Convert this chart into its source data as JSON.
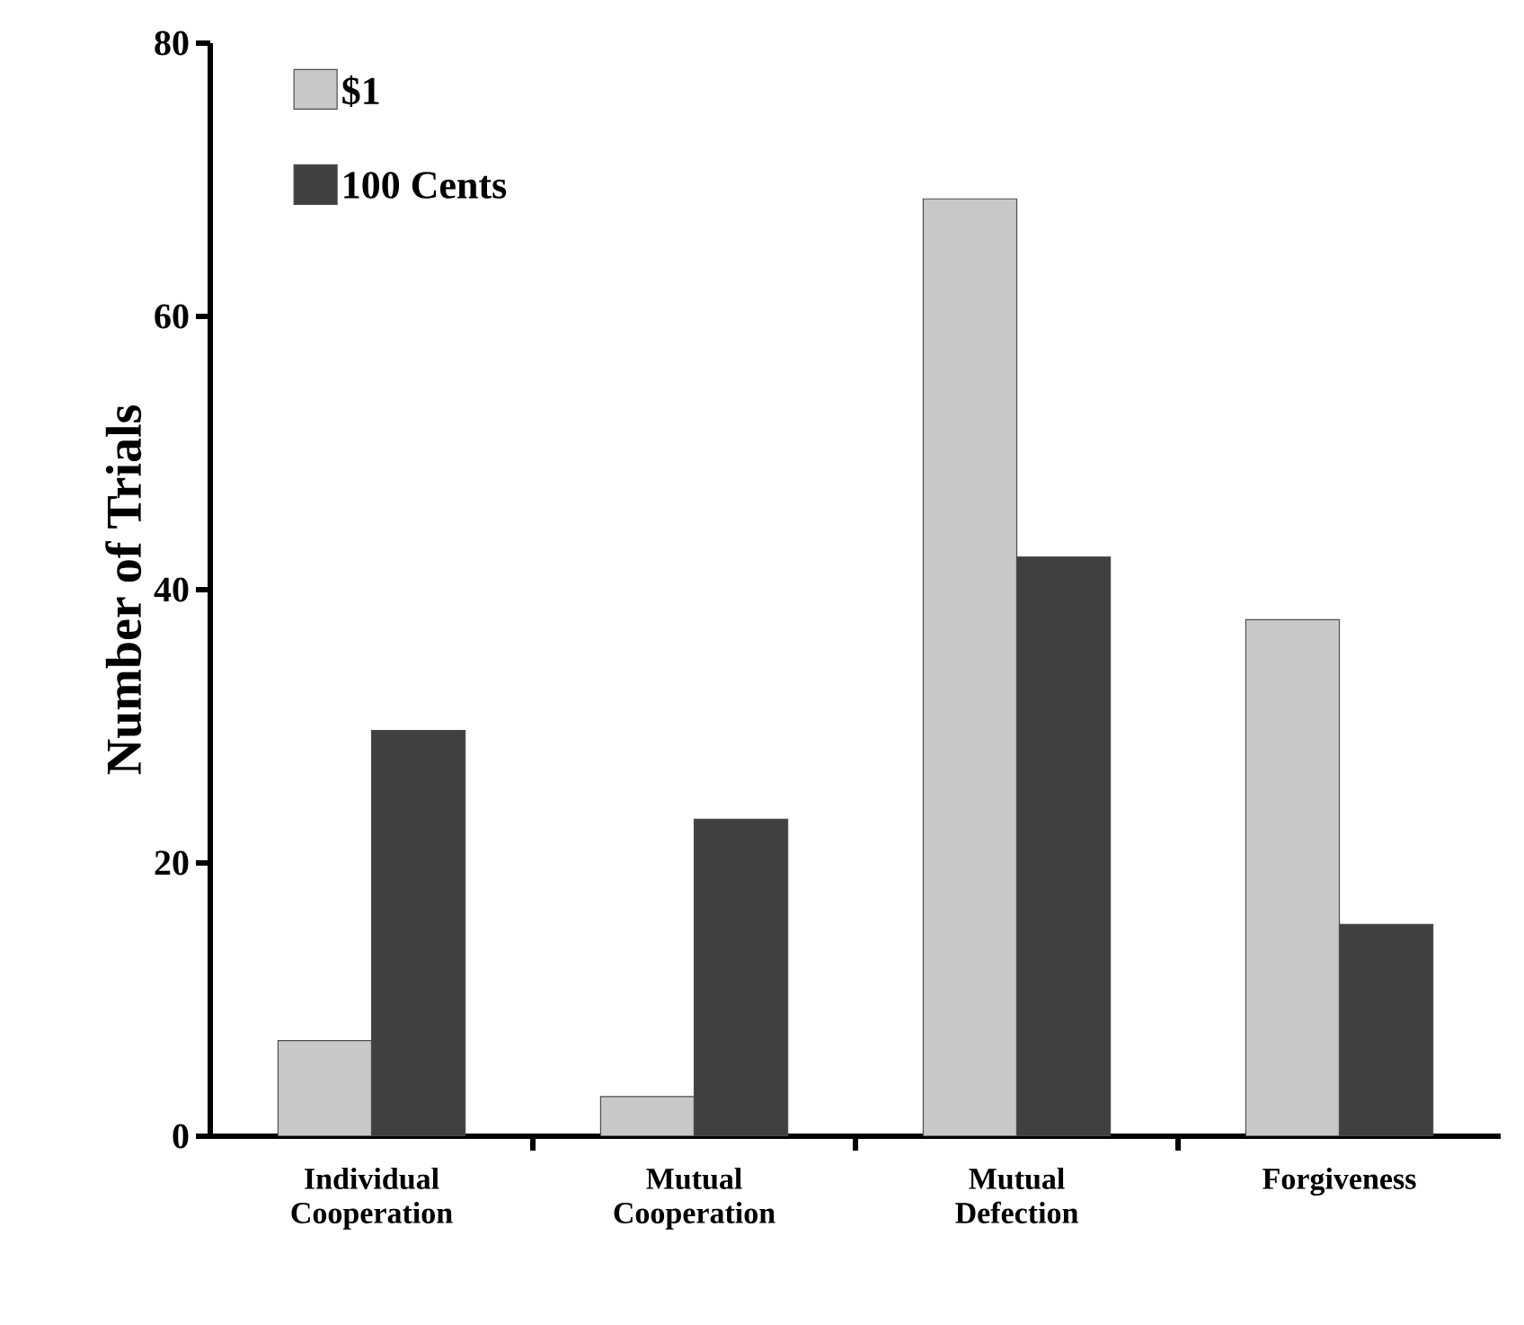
{
  "chart_data": {
    "type": "bar",
    "ylabel": "Number of Trials",
    "categories": [
      "Individual Cooperation",
      "Mutual Cooperation",
      "Mutual Defection",
      "Forgiveness"
    ],
    "series": [
      {
        "name": "$1",
        "color": "#c8c8c8",
        "values": [
          7.0,
          2.9,
          68.6,
          37.8
        ]
      },
      {
        "name": "100 Cents",
        "color": "#404040",
        "values": [
          29.7,
          23.2,
          42.4,
          15.5
        ]
      }
    ],
    "ylim": [
      0,
      80
    ],
    "yticks": [
      0,
      20,
      40,
      60,
      80
    ],
    "legend": "top left"
  }
}
